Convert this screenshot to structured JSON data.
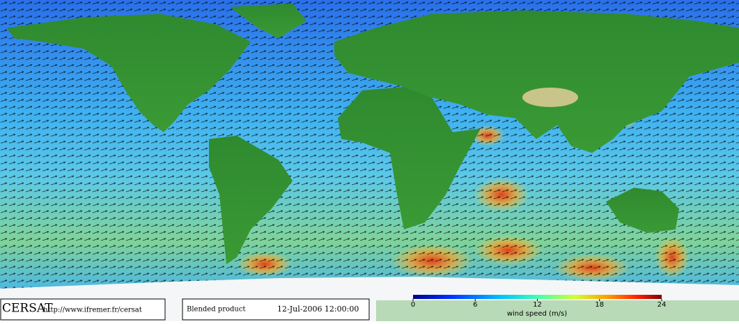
{
  "logo": "CERSAT",
  "url": "http://www.ifremer.fr/cersat",
  "product": "Blended product",
  "timestamp": "12-Jul-2006 12:00:00",
  "colorbar": {
    "label": "wind speed (m/s)",
    "range": [
      0,
      24
    ],
    "ticks": [
      0,
      6,
      12,
      18,
      24
    ]
  }
}
